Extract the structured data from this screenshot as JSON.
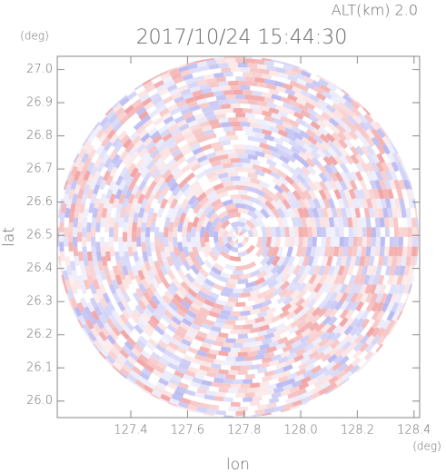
{
  "chart_data": {
    "type": "ppi",
    "title": "2017/10/24 15:44:30",
    "subtitle": "ALT(km) 2.0",
    "x_label": "lon",
    "y_label": "lat",
    "x_unit": "(deg)",
    "y_unit": "(deg)",
    "xlim": [
      127.14,
      128.42
    ],
    "ylim": [
      25.95,
      27.04
    ],
    "xticks": [
      127.4,
      127.6,
      127.8,
      {
        "value": 128,
        "label": "128.0"
      },
      128.2,
      128.4
    ],
    "yticks": [
      {
        "value": 26,
        "label": "26.0"
      },
      26.1,
      26.2,
      26.3,
      26.4,
      26.5,
      26.6,
      26.7,
      26.8,
      26.9,
      {
        "value": 27,
        "label": "27.0"
      }
    ]
  }
}
